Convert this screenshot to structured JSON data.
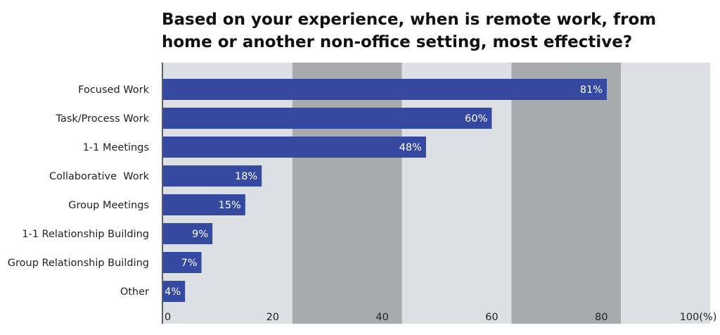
{
  "chart_data": {
    "type": "bar",
    "orientation": "horizontal",
    "title": "Based on your experience, when is remote work, from home or another non-office setting, most effective?",
    "categories": [
      "Focused Work",
      "Task/Process Work",
      "1-1 Meetings",
      "Collaborative  Work",
      "Group Meetings",
      "1-1 Relationship Building",
      "Group Relationship Building",
      "Other"
    ],
    "values": [
      81,
      60,
      48,
      18,
      15,
      9,
      7,
      4
    ],
    "data_labels": [
      "81%",
      "60%",
      "48%",
      "18%",
      "15%",
      "9%",
      "7%",
      "4%"
    ],
    "xlim": [
      0,
      100
    ],
    "xticks": [
      0,
      20,
      40,
      60,
      80,
      100
    ],
    "xtick_labels": [
      "0",
      "20",
      "40",
      "60",
      "80",
      "100(%)"
    ],
    "grid": "alternating vertical bands",
    "colors": {
      "bar": "#3549a0",
      "band_light": "#dcdfe3",
      "band_dark": "#a7abae",
      "axis": "#333333"
    }
  }
}
